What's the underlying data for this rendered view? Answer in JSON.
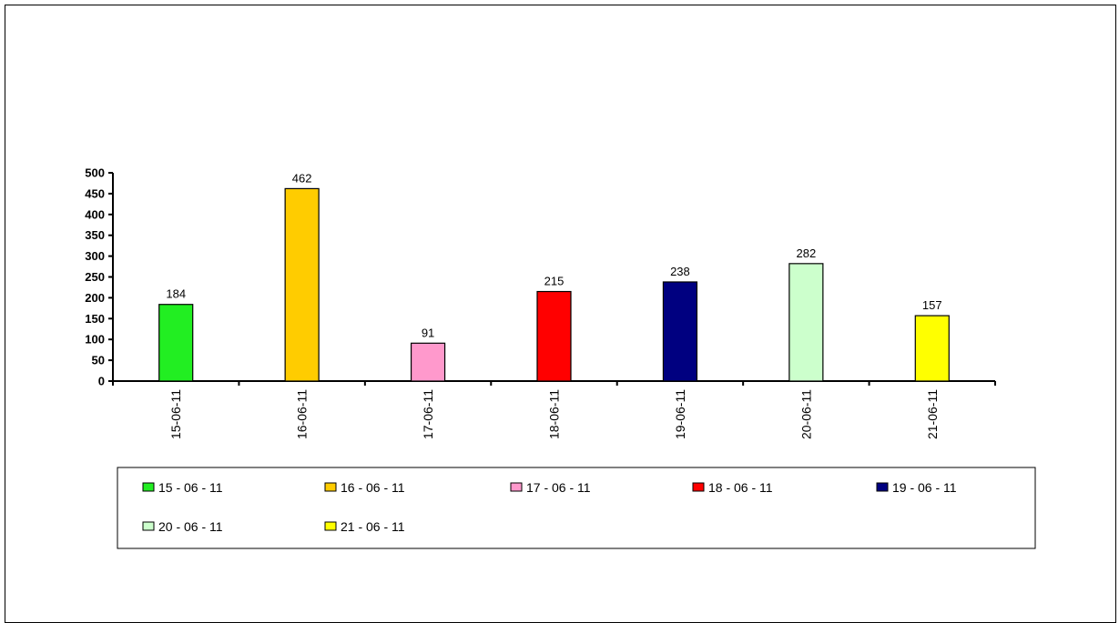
{
  "chart_data": {
    "type": "bar",
    "title": "",
    "xlabel": "",
    "ylabel": "",
    "categories": [
      "15-06-11",
      "16-06-11",
      "17-06-11",
      "18-06-11",
      "19-06-11",
      "20-06-11",
      "21-06-11"
    ],
    "values": [
      184,
      462,
      91,
      215,
      238,
      282,
      157
    ],
    "data_labels": [
      "184",
      "462",
      "91",
      "215",
      "238",
      "282",
      "157"
    ],
    "colors": [
      "#22ee22",
      "#ffcc00",
      "#ff99cc",
      "#ff0000",
      "#000080",
      "#ccffcc",
      "#ffff00"
    ],
    "ylim": [
      0,
      500
    ],
    "yticks": [
      0,
      50,
      100,
      150,
      200,
      250,
      300,
      350,
      400,
      450,
      500
    ],
    "grid": false,
    "legend": {
      "placement": "bottom",
      "entries": [
        "15 - 06 - 11",
        "16 - 06 - 11",
        "17 - 06 - 11",
        "18 - 06 - 11",
        "19 - 06 - 11",
        "20 - 06 - 11",
        "21 - 06 - 11"
      ]
    }
  }
}
